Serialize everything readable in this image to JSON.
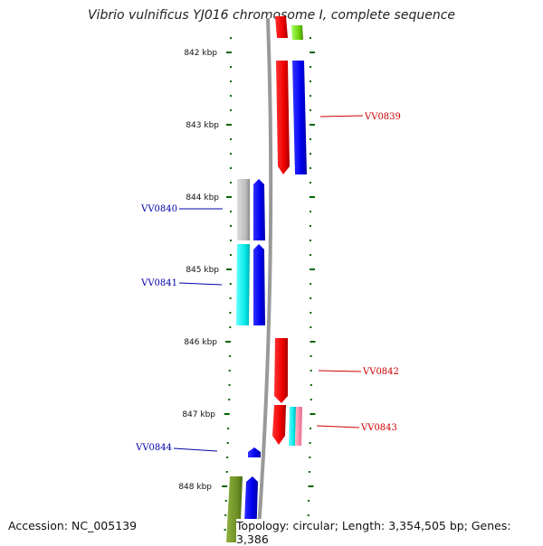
{
  "title": "Vibrio vulnificus YJ016 chromosome I, complete sequence",
  "footer": {
    "accession": "Accession: NC_005139",
    "summary": "Topology: circular; Length: 3,354,505 bp; Genes: 3,386"
  },
  "ticks": [
    "842 kbp",
    "843 kbp",
    "844 kbp",
    "845 kbp",
    "846 kbp",
    "847 kbp",
    "848 kbp"
  ],
  "genes": [
    {
      "name": "VV0839",
      "strand": "forward",
      "color": "#cc0000"
    },
    {
      "name": "VV0840",
      "strand": "reverse",
      "color": "#0000aa"
    },
    {
      "name": "VV0841",
      "strand": "reverse",
      "color": "#0000aa"
    },
    {
      "name": "VV0842",
      "strand": "forward",
      "color": "#cc0000"
    },
    {
      "name": "VV0843",
      "strand": "forward",
      "color": "#cc0000"
    },
    {
      "name": "VV0844",
      "strand": "reverse",
      "color": "#0000aa"
    }
  ],
  "colors": {
    "forward_cds": "#ff0000",
    "reverse_cds": "#0000ff",
    "backbone": "#999999",
    "tick": "#006600",
    "grey_feature": "#bbbbbb",
    "cyan_feature": "#00eeee",
    "green_feature": "#66cc00",
    "olive_feature": "#6b8e23",
    "pink_feature": "#ff88aa"
  }
}
